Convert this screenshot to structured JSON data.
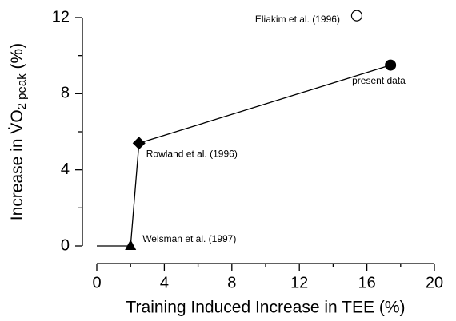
{
  "chart_data": {
    "type": "line",
    "xlabel": "Training Induced Increase in TEE (%)",
    "ylabel_parts": [
      "Increase in ",
      "V̇O",
      "2 peak",
      " (%)"
    ],
    "xlim": [
      0,
      20
    ],
    "xticks": [
      0,
      4,
      8,
      12,
      16,
      20
    ],
    "xminor": [
      2,
      6,
      10,
      14,
      18
    ],
    "ylim": [
      0,
      12
    ],
    "yticks": [
      0,
      4,
      8,
      12
    ],
    "yminor": [
      2,
      6,
      10
    ],
    "series": [
      {
        "color": "#000000",
        "x": [
          0,
          2.0,
          2.5,
          17.4
        ],
        "values": [
          0,
          0,
          5.4,
          9.5
        ]
      }
    ],
    "points": [
      {
        "label": "Welsman et al. (1997)",
        "x": 2.0,
        "y": 0,
        "marker": "triangle",
        "label_side": "right-above"
      },
      {
        "label": "Rowland et al. (1996)",
        "x": 2.5,
        "y": 5.4,
        "marker": "diamond",
        "label_side": "right-below"
      },
      {
        "label": "present data",
        "x": 17.4,
        "y": 9.5,
        "marker": "circle",
        "label_side": "below"
      },
      {
        "label": "Eliakim et al. (1996)",
        "x": 15.4,
        "y": 12.1,
        "marker": "open-circle",
        "label_side": "left"
      }
    ]
  }
}
